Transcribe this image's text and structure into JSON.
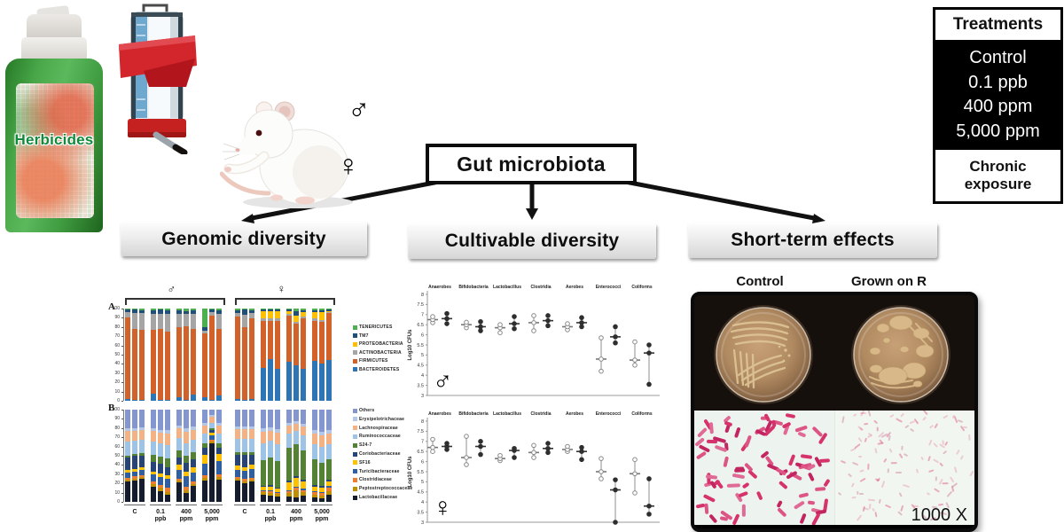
{
  "figure": {
    "herbicide_label": "Herbicides",
    "sex_male": "♂",
    "sex_female": "♀",
    "gut_box_label": "Gut microbiota",
    "branches": [
      "Genomic diversity",
      "Cultivable diversity",
      "Short-term effects"
    ],
    "treatments": {
      "header": "Treatments",
      "items": [
        "Control",
        "0.1 ppb",
        "400 ppm",
        "5,000 ppm"
      ],
      "footer": "Chronic exposure"
    },
    "photo_panel": {
      "left_label": "Control",
      "right_label": "Grown on R",
      "magnification": "1000 X"
    }
  },
  "chart_data": [
    {
      "id": "panel_A_phyla",
      "type": "stacked-bar",
      "panel_label": "A",
      "ylim": [
        0,
        100
      ],
      "ytick_step": 10,
      "group_brackets": [
        "♂",
        "♀"
      ],
      "series": [
        {
          "name": "BACTEROIDETES",
          "color": "#2e75b6"
        },
        {
          "name": "FIRMICUTES",
          "color": "#d2622a"
        },
        {
          "name": "ACTINOBACTERIA",
          "color": "#a5a5a5"
        },
        {
          "name": "PROTEOBACTERIA",
          "color": "#ffc000"
        },
        {
          "name": "TM7",
          "color": "#1f4e79"
        },
        {
          "name": "TENERICUTES",
          "color": "#4caf50"
        }
      ],
      "legend_order": [
        "TENERICUTES",
        "TM7",
        "PROTEOBACTERIA",
        "ACTINOBACTERIA",
        "FIRMICUTES",
        "BACTEROIDETES"
      ],
      "bars": [
        [
          2,
          88,
          6,
          0,
          3,
          1
        ],
        [
          1,
          77,
          17,
          0,
          4,
          1
        ],
        [
          1,
          76,
          18,
          0,
          3,
          2
        ],
        [
          8,
          69,
          17,
          0,
          4,
          2
        ],
        [
          1,
          77,
          16,
          0,
          5,
          1
        ],
        [
          1,
          74,
          19,
          0,
          4,
          2
        ],
        [
          4,
          76,
          14,
          0,
          4,
          2
        ],
        [
          1,
          80,
          13,
          0,
          3,
          3
        ],
        [
          7,
          71,
          16,
          0,
          4,
          2
        ],
        [
          4,
          69,
          3,
          0,
          4,
          20
        ],
        [
          1,
          91,
          4,
          0,
          3,
          1
        ],
        [
          6,
          72,
          16,
          0,
          4,
          2
        ],
        [
          2,
          89,
          4,
          0,
          3,
          2
        ],
        [
          1,
          79,
          13,
          0,
          6,
          1
        ],
        [
          2,
          87,
          6,
          0,
          3,
          2
        ],
        [
          36,
          51,
          2,
          8,
          2,
          1
        ],
        [
          45,
          42,
          2,
          8,
          2,
          1
        ],
        [
          35,
          52,
          2,
          8,
          2,
          1
        ],
        [
          42,
          50,
          2,
          3,
          2,
          1
        ],
        [
          38,
          46,
          2,
          6,
          5,
          3
        ],
        [
          35,
          54,
          2,
          5,
          2,
          2
        ],
        [
          43,
          44,
          2,
          7,
          2,
          2
        ],
        [
          40,
          46,
          2,
          8,
          2,
          2
        ],
        [
          44,
          51,
          1,
          1,
          2,
          1
        ]
      ]
    },
    {
      "id": "panel_B_families",
      "type": "stacked-bar",
      "panel_label": "B",
      "ylim": [
        0,
        100
      ],
      "ytick_step": 10,
      "x_group_labels": [
        "C",
        "0.1 ppb",
        "400 ppm",
        "5,000 ppm",
        "C",
        "0.1 ppb",
        "400 ppm",
        "5,000 ppm"
      ],
      "series": [
        {
          "name": "Lactobacillaceae",
          "color": "#141c2e"
        },
        {
          "name": "Peptostreptococcaceae",
          "color": "#bf8f00"
        },
        {
          "name": "Clostridiaceae",
          "color": "#ed7d31"
        },
        {
          "name": "Turicibacteraceae",
          "color": "#2e5fa3"
        },
        {
          "name": "SF16",
          "color": "#ffc000"
        },
        {
          "name": "Coriobacteriaceae",
          "color": "#264478"
        },
        {
          "name": "S24-7",
          "color": "#548235"
        },
        {
          "name": "Ruminococcaceae",
          "color": "#9dc3e6"
        },
        {
          "name": "Lachnospiraceae",
          "color": "#f4b183"
        },
        {
          "name": "Erysipelotrichaceae",
          "color": "#b4c7e7"
        },
        {
          "name": "Others",
          "color": "#8496d0"
        }
      ],
      "legend_order": [
        "Others",
        "Erysipelotrichaceae",
        "Lachnospiraceae",
        "Ruminococcaceae",
        "S24-7",
        "Coriobacteriaceae",
        "SF16",
        "Turicibacteraceae",
        "Clostridiaceae",
        "Peptostreptococcaceae",
        "Lactobacillaceae"
      ],
      "bars": [
        [
          22,
          2,
          2,
          6,
          3,
          13,
          2,
          15,
          12,
          3,
          20
        ],
        [
          23,
          2,
          3,
          5,
          3,
          14,
          2,
          14,
          11,
          3,
          20
        ],
        [
          25,
          2,
          2,
          6,
          3,
          12,
          3,
          14,
          11,
          3,
          19
        ],
        [
          16,
          3,
          3,
          8,
          3,
          10,
          8,
          14,
          12,
          3,
          20
        ],
        [
          12,
          3,
          3,
          9,
          4,
          10,
          8,
          15,
          11,
          3,
          22
        ],
        [
          8,
          3,
          4,
          10,
          4,
          9,
          9,
          15,
          12,
          4,
          22
        ],
        [
          21,
          2,
          2,
          10,
          5,
          8,
          8,
          13,
          11,
          3,
          17
        ],
        [
          10,
          3,
          3,
          12,
          5,
          9,
          8,
          14,
          12,
          4,
          20
        ],
        [
          17,
          2,
          3,
          10,
          6,
          8,
          8,
          13,
          11,
          4,
          18
        ],
        [
          23,
          3,
          3,
          12,
          10,
          8,
          5,
          10,
          9,
          3,
          14
        ],
        [
          63,
          2,
          2,
          5,
          3,
          3,
          2,
          6,
          6,
          2,
          6
        ],
        [
          24,
          3,
          3,
          14,
          8,
          7,
          5,
          10,
          9,
          3,
          14
        ],
        [
          23,
          2,
          2,
          8,
          4,
          12,
          3,
          14,
          11,
          3,
          18
        ],
        [
          20,
          2,
          3,
          9,
          4,
          13,
          3,
          14,
          11,
          3,
          18
        ],
        [
          22,
          2,
          2,
          10,
          4,
          11,
          3,
          14,
          11,
          3,
          18
        ],
        [
          8,
          3,
          1,
          1,
          3,
          1,
          28,
          19,
          12,
          4,
          20
        ],
        [
          7,
          3,
          2,
          1,
          3,
          2,
          30,
          18,
          11,
          4,
          19
        ],
        [
          6,
          3,
          1,
          1,
          3,
          1,
          29,
          19,
          12,
          4,
          21
        ],
        [
          6,
          4,
          2,
          1,
          8,
          2,
          36,
          15,
          9,
          3,
          14
        ],
        [
          5,
          8,
          2,
          1,
          10,
          2,
          35,
          14,
          8,
          3,
          12
        ],
        [
          7,
          4,
          2,
          1,
          8,
          2,
          32,
          16,
          10,
          3,
          15
        ],
        [
          5,
          3,
          3,
          1,
          4,
          2,
          28,
          17,
          11,
          4,
          22
        ],
        [
          4,
          3,
          3,
          1,
          4,
          2,
          25,
          18,
          12,
          4,
          24
        ],
        [
          8,
          4,
          3,
          2,
          5,
          2,
          22,
          17,
          11,
          4,
          22
        ]
      ]
    },
    {
      "id": "cultivable_male",
      "type": "scatter",
      "sex_symbol": "♂",
      "ylabel": "Log10 CFUs",
      "ylim": [
        3,
        8
      ],
      "ytick_step": 0.5,
      "categories": [
        "Anaerobes",
        "Bifidobacteria",
        "Lactobacillus",
        "Clostridia",
        "Aerobes",
        "Enterococci",
        "Coliforms"
      ],
      "series": [
        {
          "name": "open_circles",
          "marker": "open",
          "values": [
            [
              6.75,
              6.6,
              6.9
            ],
            [
              6.5,
              6.35,
              6.62
            ],
            [
              6.35,
              6.1,
              6.5
            ],
            [
              6.6,
              6.2,
              6.95
            ],
            [
              6.4,
              6.25,
              6.55
            ],
            [
              4.8,
              4.2,
              5.85
            ],
            [
              4.75,
              4.5,
              5.65
            ]
          ]
        },
        {
          "name": "filled_circles",
          "marker": "filled",
          "values": [
            [
              6.8,
              6.55,
              7.05
            ],
            [
              6.4,
              6.2,
              6.65
            ],
            [
              6.55,
              6.3,
              6.9
            ],
            [
              6.7,
              6.45,
              6.95
            ],
            [
              6.6,
              6.4,
              6.85
            ],
            [
              5.9,
              5.6,
              6.4
            ],
            [
              5.1,
              3.55,
              5.5
            ]
          ]
        }
      ]
    },
    {
      "id": "cultivable_female",
      "type": "scatter",
      "sex_symbol": "♀",
      "ylabel": "Log10 CFUs",
      "ylim": [
        3,
        8
      ],
      "ytick_step": 0.5,
      "categories": [
        "Anaerobes",
        "Bifidobacteria",
        "Lactobacillus",
        "Clostridia",
        "Aerobes",
        "Enterococci",
        "Coliforms"
      ],
      "series": [
        {
          "name": "open_circles",
          "marker": "open",
          "values": [
            [
              6.7,
              6.5,
              7.1
            ],
            [
              6.2,
              5.85,
              7.25
            ],
            [
              6.15,
              6.05,
              6.3
            ],
            [
              6.45,
              6.2,
              6.8
            ],
            [
              6.6,
              6.5,
              6.75
            ],
            [
              5.5,
              5.15,
              6.15
            ],
            [
              5.4,
              4.45,
              6.1
            ]
          ]
        },
        {
          "name": "filled_circles",
          "marker": "filled",
          "values": [
            [
              6.75,
              6.6,
              6.9
            ],
            [
              6.75,
              6.35,
              7.0
            ],
            [
              6.55,
              6.2,
              6.65
            ],
            [
              6.65,
              6.45,
              6.9
            ],
            [
              6.5,
              6.1,
              6.7
            ],
            [
              4.6,
              3.0,
              5.1
            ],
            [
              3.8,
              3.4,
              5.15
            ]
          ]
        }
      ]
    }
  ]
}
